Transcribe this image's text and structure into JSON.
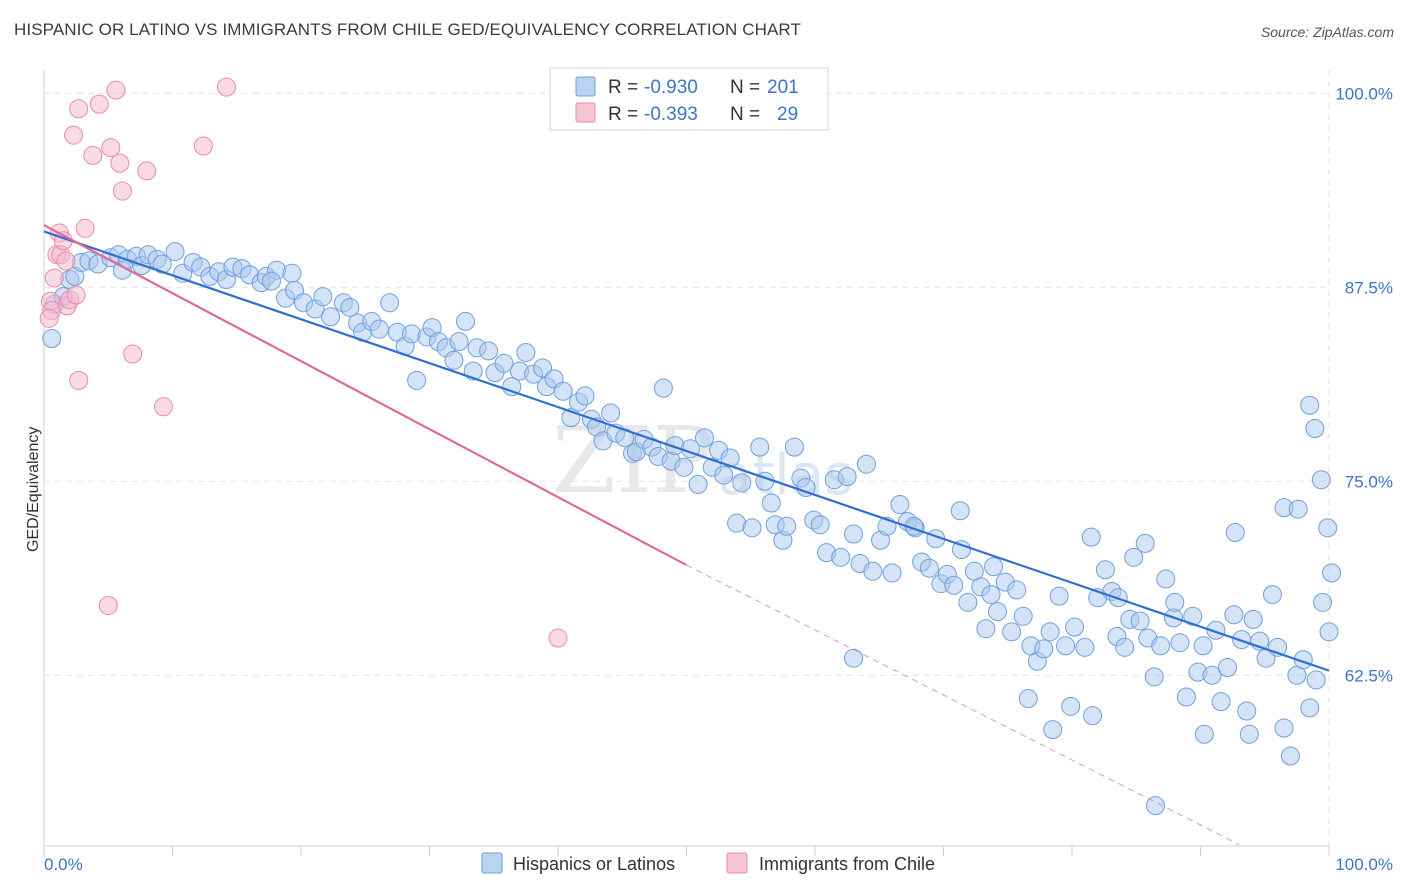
{
  "title": "HISPANIC OR LATINO VS IMMIGRANTS FROM CHILE GED/EQUIVALENCY CORRELATION CHART",
  "source": "Source: ZipAtlas.com",
  "watermark": "ZIPatlas",
  "legend": {
    "rows": [
      {
        "r_label": "R =",
        "r_value": "-0.930",
        "n_label": "N =",
        "n_value": "201",
        "color": "#a9c8ee"
      },
      {
        "r_label": "R =",
        "r_value": "-0.393",
        "n_label": "N =",
        "n_value": "29",
        "color": "#f5b8cb"
      }
    ]
  },
  "bottom_legend": [
    {
      "label": "Hispanics or Latinos",
      "color": "#a9c8ee"
    },
    {
      "label": "Immigrants from Chile",
      "color": "#f5b8cb"
    }
  ],
  "chart_data": {
    "type": "scatter",
    "title": "HISPANIC OR LATINO VS IMMIGRANTS FROM CHILE GED/EQUIVALENCY CORRELATION CHART",
    "xlabel": "",
    "ylabel": "GED/Equivalency",
    "xlim": [
      0,
      100
    ],
    "ylim": [
      51.5,
      101.5
    ],
    "x_tick_labels": [
      "0.0%",
      "100.0%"
    ],
    "y_ticks": [
      62.5,
      75.0,
      87.5,
      100.0
    ],
    "y_tick_labels": [
      "62.5%",
      "75.0%",
      "87.5%",
      "100.0%"
    ],
    "grid": true,
    "series": [
      {
        "name": "Hispanics or Latinos",
        "color": "#6fa0e0",
        "fill": "#a9c8ee",
        "trend": {
          "x": [
            0,
            100
          ],
          "y": [
            91.1,
            62.8
          ],
          "color": "#2f6fd0"
        },
        "points": [
          [
            0.6,
            84.2
          ],
          [
            0.8,
            86.4
          ],
          [
            1.5,
            86.9
          ],
          [
            2.0,
            88.0
          ],
          [
            2.4,
            88.2
          ],
          [
            2.9,
            89.1
          ],
          [
            3.5,
            89.2
          ],
          [
            4.2,
            89.0
          ],
          [
            5.2,
            89.4
          ],
          [
            5.8,
            89.6
          ],
          [
            6.1,
            88.6
          ],
          [
            6.5,
            89.3
          ],
          [
            7.2,
            89.5
          ],
          [
            7.6,
            88.9
          ],
          [
            8.1,
            89.6
          ],
          [
            8.8,
            89.3
          ],
          [
            9.2,
            89.0
          ],
          [
            10.2,
            89.8
          ],
          [
            10.8,
            88.4
          ],
          [
            11.6,
            89.1
          ],
          [
            12.2,
            88.8
          ],
          [
            12.9,
            88.2
          ],
          [
            13.6,
            88.5
          ],
          [
            14.2,
            88.0
          ],
          [
            14.7,
            88.8
          ],
          [
            15.4,
            88.7
          ],
          [
            16.0,
            88.3
          ],
          [
            16.9,
            87.8
          ],
          [
            17.3,
            88.2
          ],
          [
            18.1,
            88.6
          ],
          [
            17.7,
            87.9
          ],
          [
            18.8,
            86.8
          ],
          [
            19.3,
            88.4
          ],
          [
            19.5,
            87.3
          ],
          [
            20.2,
            86.5
          ],
          [
            21.1,
            86.1
          ],
          [
            21.7,
            86.9
          ],
          [
            22.3,
            85.6
          ],
          [
            23.3,
            86.5
          ],
          [
            23.8,
            86.2
          ],
          [
            24.4,
            85.2
          ],
          [
            24.8,
            84.6
          ],
          [
            25.5,
            85.3
          ],
          [
            26.1,
            84.8
          ],
          [
            26.9,
            86.5
          ],
          [
            27.5,
            84.6
          ],
          [
            28.1,
            83.7
          ],
          [
            28.6,
            84.5
          ],
          [
            29.0,
            81.5
          ],
          [
            29.8,
            84.3
          ],
          [
            30.2,
            84.9
          ],
          [
            30.7,
            84.0
          ],
          [
            31.3,
            83.6
          ],
          [
            31.9,
            82.8
          ],
          [
            32.3,
            84.0
          ],
          [
            32.8,
            85.3
          ],
          [
            33.4,
            82.1
          ],
          [
            33.7,
            83.6
          ],
          [
            34.6,
            83.4
          ],
          [
            35.1,
            82.0
          ],
          [
            35.8,
            82.6
          ],
          [
            36.4,
            81.1
          ],
          [
            37.0,
            82.1
          ],
          [
            37.5,
            83.3
          ],
          [
            38.1,
            81.9
          ],
          [
            38.8,
            82.3
          ],
          [
            39.1,
            81.1
          ],
          [
            39.7,
            81.6
          ],
          [
            40.4,
            80.8
          ],
          [
            41.0,
            79.1
          ],
          [
            41.6,
            80.1
          ],
          [
            42.1,
            80.5
          ],
          [
            42.6,
            79.0
          ],
          [
            43.0,
            78.5
          ],
          [
            43.5,
            77.6
          ],
          [
            44.1,
            79.4
          ],
          [
            44.5,
            78.1
          ],
          [
            45.2,
            77.8
          ],
          [
            45.8,
            76.8
          ],
          [
            46.1,
            76.9
          ],
          [
            46.7,
            77.7
          ],
          [
            47.3,
            77.2
          ],
          [
            47.8,
            76.6
          ],
          [
            48.2,
            81.0
          ],
          [
            48.8,
            76.3
          ],
          [
            49.1,
            77.3
          ],
          [
            49.8,
            75.9
          ],
          [
            50.3,
            77.1
          ],
          [
            50.9,
            74.8
          ],
          [
            51.4,
            77.8
          ],
          [
            52.0,
            75.9
          ],
          [
            52.5,
            77.0
          ],
          [
            52.9,
            75.4
          ],
          [
            53.4,
            76.5
          ],
          [
            53.9,
            72.3
          ],
          [
            54.3,
            74.9
          ],
          [
            55.1,
            72.0
          ],
          [
            55.7,
            77.2
          ],
          [
            56.1,
            75.0
          ],
          [
            56.6,
            73.6
          ],
          [
            56.9,
            72.2
          ],
          [
            57.5,
            71.2
          ],
          [
            57.8,
            72.1
          ],
          [
            58.4,
            77.2
          ],
          [
            58.9,
            75.2
          ],
          [
            59.3,
            74.6
          ],
          [
            59.9,
            72.5
          ],
          [
            60.4,
            72.2
          ],
          [
            60.9,
            70.4
          ],
          [
            61.5,
            75.1
          ],
          [
            62.0,
            70.1
          ],
          [
            62.5,
            75.3
          ],
          [
            63.0,
            71.6
          ],
          [
            63.5,
            69.7
          ],
          [
            64.0,
            76.1
          ],
          [
            64.5,
            69.2
          ],
          [
            65.1,
            71.2
          ],
          [
            65.6,
            72.1
          ],
          [
            66.0,
            69.1
          ],
          [
            66.6,
            73.5
          ],
          [
            67.2,
            72.4
          ],
          [
            67.8,
            72.0
          ],
          [
            68.3,
            69.8
          ],
          [
            68.9,
            69.4
          ],
          [
            69.4,
            71.3
          ],
          [
            69.8,
            68.4
          ],
          [
            70.3,
            69.0
          ],
          [
            70.8,
            68.3
          ],
          [
            71.4,
            70.6
          ],
          [
            71.9,
            67.2
          ],
          [
            72.4,
            69.2
          ],
          [
            72.9,
            68.2
          ],
          [
            73.3,
            65.5
          ],
          [
            73.9,
            69.5
          ],
          [
            74.2,
            66.6
          ],
          [
            74.8,
            68.5
          ],
          [
            75.3,
            65.3
          ],
          [
            75.7,
            68.0
          ],
          [
            76.2,
            66.3
          ],
          [
            76.8,
            64.4
          ],
          [
            77.3,
            63.4
          ],
          [
            77.8,
            64.2
          ],
          [
            78.3,
            65.3
          ],
          [
            79.0,
            67.6
          ],
          [
            79.5,
            64.4
          ],
          [
            79.9,
            60.5
          ],
          [
            80.2,
            65.6
          ],
          [
            81.0,
            64.3
          ],
          [
            81.6,
            59.9
          ],
          [
            82.0,
            67.5
          ],
          [
            82.6,
            69.3
          ],
          [
            83.1,
            67.9
          ],
          [
            83.5,
            65.0
          ],
          [
            84.1,
            64.3
          ],
          [
            84.5,
            66.1
          ],
          [
            84.8,
            70.1
          ],
          [
            85.3,
            66.0
          ],
          [
            85.9,
            64.9
          ],
          [
            86.4,
            62.4
          ],
          [
            86.9,
            64.4
          ],
          [
            87.3,
            68.7
          ],
          [
            87.9,
            66.2
          ],
          [
            88.4,
            64.6
          ],
          [
            88.9,
            61.1
          ],
          [
            89.4,
            66.3
          ],
          [
            89.8,
            62.7
          ],
          [
            90.2,
            64.4
          ],
          [
            90.9,
            62.5
          ],
          [
            91.2,
            65.4
          ],
          [
            91.6,
            60.8
          ],
          [
            92.1,
            63.0
          ],
          [
            92.6,
            66.4
          ],
          [
            93.2,
            64.8
          ],
          [
            93.6,
            60.2
          ],
          [
            94.1,
            66.1
          ],
          [
            94.6,
            64.7
          ],
          [
            95.1,
            63.6
          ],
          [
            95.6,
            67.7
          ],
          [
            96.0,
            64.3
          ],
          [
            96.5,
            59.1
          ],
          [
            97.0,
            57.3
          ],
          [
            97.5,
            62.5
          ],
          [
            98.0,
            63.5
          ],
          [
            98.5,
            60.4
          ],
          [
            99.0,
            62.2
          ],
          [
            99.5,
            67.2
          ],
          [
            99.9,
            72.0
          ],
          [
            100.2,
            69.1
          ],
          [
            63.0,
            63.6
          ],
          [
            67.7,
            72.1
          ],
          [
            71.3,
            73.1
          ],
          [
            73.7,
            67.7
          ],
          [
            76.6,
            61.0
          ],
          [
            78.5,
            59.0
          ],
          [
            81.5,
            71.4
          ],
          [
            83.6,
            67.5
          ],
          [
            85.7,
            71.0
          ],
          [
            88.0,
            67.2
          ],
          [
            90.3,
            58.7
          ],
          [
            92.7,
            71.7
          ],
          [
            93.8,
            58.7
          ],
          [
            96.5,
            73.3
          ],
          [
            97.6,
            73.2
          ],
          [
            98.5,
            79.9
          ],
          [
            98.9,
            78.4
          ],
          [
            99.4,
            75.1
          ],
          [
            100.0,
            65.3
          ],
          [
            86.5,
            54.1
          ]
        ]
      },
      {
        "name": "Immigrants from Chile",
        "color": "#ec8aa8",
        "fill": "#f5b8cb",
        "trend": {
          "x": [
            0,
            50
          ],
          "y": [
            91.5,
            69.6
          ],
          "color": "#e06a93"
        },
        "trend_dashed": {
          "x": [
            50,
            93
          ],
          "y": [
            69.6,
            51.6
          ]
        },
        "points": [
          [
            0.5,
            86.6
          ],
          [
            0.6,
            86.0
          ],
          [
            0.8,
            88.1
          ],
          [
            1.0,
            89.6
          ],
          [
            1.2,
            91.0
          ],
          [
            1.3,
            89.6
          ],
          [
            1.5,
            90.5
          ],
          [
            1.7,
            89.2
          ],
          [
            1.8,
            86.3
          ],
          [
            2.0,
            86.7
          ],
          [
            2.3,
            97.3
          ],
          [
            2.7,
            81.5
          ],
          [
            2.7,
            99.0
          ],
          [
            3.2,
            91.3
          ],
          [
            3.8,
            96.0
          ],
          [
            4.3,
            99.3
          ],
          [
            5.0,
            67.0
          ],
          [
            5.2,
            96.5
          ],
          [
            5.6,
            100.2
          ],
          [
            5.9,
            95.5
          ],
          [
            6.1,
            93.7
          ],
          [
            6.9,
            83.2
          ],
          [
            8.0,
            95.0
          ],
          [
            9.3,
            79.8
          ],
          [
            12.4,
            96.6
          ],
          [
            14.2,
            100.4
          ],
          [
            40.0,
            64.9
          ],
          [
            0.4,
            85.5
          ],
          [
            2.5,
            87.0
          ]
        ]
      }
    ]
  }
}
